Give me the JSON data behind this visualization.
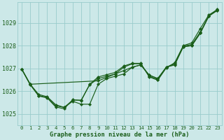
{
  "background_color": "#cce8e8",
  "grid_color": "#99cccc",
  "line_color": "#1a5e1a",
  "marker_color": "#1a5e1a",
  "xlabel": "Graphe pression niveau de la mer (hPa)",
  "xlabel_color": "#1a5e1a",
  "ylim": [
    1024.5,
    1029.9
  ],
  "xlim": [
    -0.5,
    23.5
  ],
  "yticks": [
    1025,
    1026,
    1027,
    1028,
    1029
  ],
  "xtick_labels": [
    "0",
    "1",
    "2",
    "3",
    "4",
    "5",
    "6",
    "7",
    "8",
    "9",
    "10",
    "11",
    "12",
    "13",
    "14",
    "15",
    "16",
    "17",
    "18",
    "19",
    "20",
    "21",
    "22",
    "23"
  ],
  "series": [
    {
      "x": [
        0,
        1,
        9,
        10,
        11,
        12,
        13,
        14,
        15,
        16,
        17,
        18,
        19,
        20,
        21,
        22,
        23
      ],
      "y": [
        1026.97,
        1026.3,
        1026.45,
        1026.6,
        1026.75,
        1026.9,
        1027.05,
        1027.15,
        1026.7,
        1026.55,
        1027.05,
        1027.2,
        1027.95,
        1028.0,
        1028.55,
        1029.3,
        1029.6
      ]
    },
    {
      "x": [
        0,
        1,
        2,
        3,
        4,
        5,
        6,
        7,
        8,
        9,
        10,
        11,
        12,
        13,
        14,
        15,
        16,
        17,
        18,
        19,
        20,
        21,
        22,
        23
      ],
      "y": [
        1026.97,
        1026.3,
        1025.85,
        1025.75,
        1025.4,
        1025.28,
        1025.55,
        1025.42,
        1025.42,
        1026.3,
        1026.55,
        1026.65,
        1026.75,
        1027.05,
        1027.15,
        1026.7,
        1026.55,
        1027.05,
        1027.15,
        1027.95,
        1028.0,
        1028.55,
        1029.3,
        1029.55
      ]
    },
    {
      "x": [
        0,
        1,
        2,
        3,
        4,
        5,
        6,
        7,
        8,
        9,
        10,
        11,
        12,
        13,
        14,
        15,
        16,
        17,
        18,
        19,
        20,
        21,
        22,
        23
      ],
      "y": [
        1026.97,
        1026.3,
        1025.8,
        1025.72,
        1025.35,
        1025.28,
        1025.6,
        1025.6,
        1026.28,
        1026.55,
        1026.65,
        1026.75,
        1027.05,
        1027.2,
        1027.2,
        1026.65,
        1026.5,
        1027.05,
        1027.2,
        1027.98,
        1028.05,
        1028.6,
        1029.3,
        1029.55
      ]
    },
    {
      "x": [
        0,
        1,
        2,
        3,
        4,
        5,
        6,
        7,
        8,
        9,
        10,
        11,
        12,
        13,
        14,
        15,
        16,
        17,
        18,
        19,
        20,
        21,
        22,
        23
      ],
      "y": [
        1026.97,
        1026.28,
        1025.78,
        1025.7,
        1025.3,
        1025.22,
        1025.62,
        1025.58,
        1026.3,
        1026.62,
        1026.72,
        1026.82,
        1027.1,
        1027.22,
        1027.22,
        1026.62,
        1026.48,
        1027.02,
        1027.25,
        1028.0,
        1028.12,
        1028.75,
        1029.35,
        1029.58
      ]
    }
  ]
}
